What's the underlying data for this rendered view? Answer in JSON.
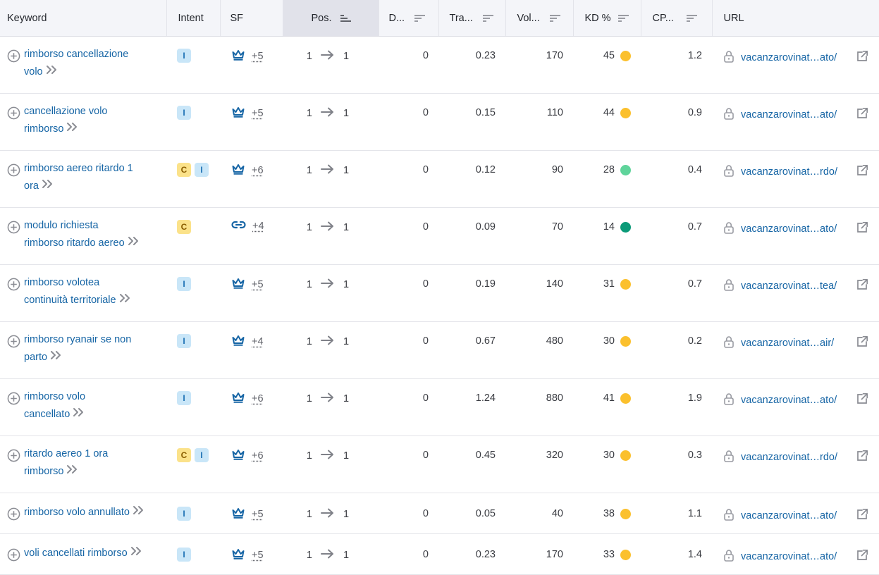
{
  "columns": {
    "keyword": "Keyword",
    "intent": "Intent",
    "sf": "SF",
    "pos": "Pos.",
    "diff": "D...",
    "traffic": "Tra...",
    "volume": "Vol...",
    "kd": "KD %",
    "cpc": "CP...",
    "url": "URL"
  },
  "colors": {
    "link": "#1665a5",
    "kd_yellow": "#fbc02d",
    "kd_light_green": "#5fd49b",
    "kd_dark_green": "#0b9a78"
  },
  "rows": [
    {
      "kw1": "rimborso cancellazione",
      "kw2": "volo",
      "intents": [
        "I"
      ],
      "sf_icon": "crown-icon",
      "sf_more": "+5",
      "pos_from": "1",
      "pos_to": "1",
      "diff": "0",
      "traffic": "0.23",
      "volume": "170",
      "kd": "45",
      "kd_color": "#fbc02d",
      "cpc": "1.2",
      "url": "vacanzarovinat…ato/"
    },
    {
      "kw1": "cancellazione volo",
      "kw2": "rimborso",
      "intents": [
        "I"
      ],
      "sf_icon": "crown-icon",
      "sf_more": "+5",
      "pos_from": "1",
      "pos_to": "1",
      "diff": "0",
      "traffic": "0.15",
      "volume": "110",
      "kd": "44",
      "kd_color": "#fbc02d",
      "cpc": "0.9",
      "url": "vacanzarovinat…ato/"
    },
    {
      "kw1": "rimborso aereo ritardo 1",
      "kw2": "ora",
      "intents": [
        "C",
        "I"
      ],
      "sf_icon": "crown-icon",
      "sf_more": "+6",
      "pos_from": "1",
      "pos_to": "1",
      "diff": "0",
      "traffic": "0.12",
      "volume": "90",
      "kd": "28",
      "kd_color": "#5fd49b",
      "cpc": "0.4",
      "url": "vacanzarovinat…rdo/"
    },
    {
      "kw1": "modulo richiesta",
      "kw2": "rimborso ritardo aereo",
      "intents": [
        "C"
      ],
      "sf_icon": "link-icon",
      "sf_more": "+4",
      "pos_from": "1",
      "pos_to": "1",
      "diff": "0",
      "traffic": "0.09",
      "volume": "70",
      "kd": "14",
      "kd_color": "#0b9a78",
      "cpc": "0.7",
      "url": "vacanzarovinat…ato/"
    },
    {
      "kw1": "rimborso volotea",
      "kw2": "continuità territoriale",
      "intents": [
        "I"
      ],
      "sf_icon": "crown-icon",
      "sf_more": "+5",
      "pos_from": "1",
      "pos_to": "1",
      "diff": "0",
      "traffic": "0.19",
      "volume": "140",
      "kd": "31",
      "kd_color": "#fbc02d",
      "cpc": "0.7",
      "url": "vacanzarovinat…tea/"
    },
    {
      "kw1": "rimborso ryanair se non",
      "kw2": "parto",
      "intents": [
        "I"
      ],
      "sf_icon": "crown-icon",
      "sf_more": "+4",
      "pos_from": "1",
      "pos_to": "1",
      "diff": "0",
      "traffic": "0.67",
      "volume": "480",
      "kd": "30",
      "kd_color": "#fbc02d",
      "cpc": "0.2",
      "url": "vacanzarovinat…air/"
    },
    {
      "kw1": "rimborso volo",
      "kw2": "cancellato",
      "intents": [
        "I"
      ],
      "sf_icon": "crown-icon",
      "sf_more": "+6",
      "pos_from": "1",
      "pos_to": "1",
      "diff": "0",
      "traffic": "1.24",
      "volume": "880",
      "kd": "41",
      "kd_color": "#fbc02d",
      "cpc": "1.9",
      "url": "vacanzarovinat…ato/"
    },
    {
      "kw1": "ritardo aereo 1 ora",
      "kw2": "rimborso",
      "intents": [
        "C",
        "I"
      ],
      "sf_icon": "crown-icon",
      "sf_more": "+6",
      "pos_from": "1",
      "pos_to": "1",
      "diff": "0",
      "traffic": "0.45",
      "volume": "320",
      "kd": "30",
      "kd_color": "#fbc02d",
      "cpc": "0.3",
      "url": "vacanzarovinat…rdo/"
    },
    {
      "kw1": "rimborso volo annullato",
      "kw2": "",
      "intents": [
        "I"
      ],
      "sf_icon": "crown-icon",
      "sf_more": "+5",
      "pos_from": "1",
      "pos_to": "1",
      "diff": "0",
      "traffic": "0.05",
      "volume": "40",
      "kd": "38",
      "kd_color": "#fbc02d",
      "cpc": "1.1",
      "url": "vacanzarovinat…ato/"
    },
    {
      "kw1": "voli cancellati rimborso",
      "kw2": "",
      "intents": [
        "I"
      ],
      "sf_icon": "crown-icon",
      "sf_more": "+5",
      "pos_from": "1",
      "pos_to": "1",
      "diff": "0",
      "traffic": "0.23",
      "volume": "170",
      "kd": "33",
      "kd_color": "#fbc02d",
      "cpc": "1.4",
      "url": "vacanzarovinat…ato/"
    }
  ]
}
